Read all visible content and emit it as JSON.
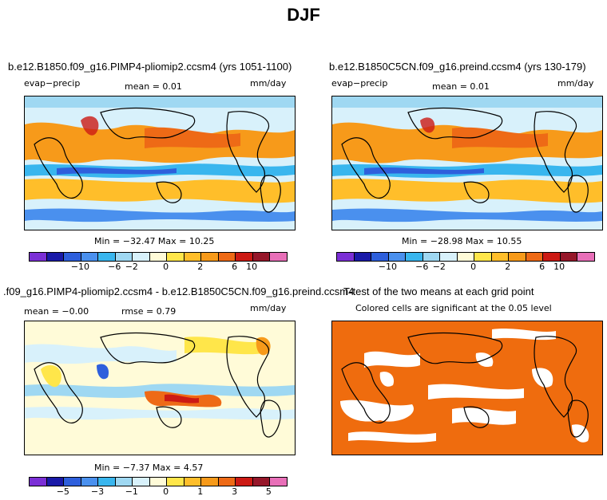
{
  "title": "DJF",
  "panels": [
    {
      "title": "b.e12.B1850.f09_g16.PIMP4-pliomip2.ccsm4 (yrs 1051-1100)",
      "variable": "evap−precip",
      "stat": "mean =    0.01",
      "units": "mm/day",
      "minmax": "Min = −32.47  Max =    10.25",
      "ticks": [
        "−10",
        "−6",
        "−2",
        "0",
        "2",
        "6",
        "10"
      ]
    },
    {
      "title": "b.e12.B1850C5CN.f09_g16.preind.ccsm4 (yrs 130-179)",
      "variable": "evap−precip",
      "stat": "mean =    0.01",
      "units": "mm/day",
      "minmax": "Min = −28.98  Max =    10.55",
      "ticks": [
        "−10",
        "−6",
        "−2",
        "0",
        "2",
        "6",
        "10"
      ]
    },
    {
      "title": ".f09_g16.PIMP4-pliomip2.ccsm4 - b.e12.B1850C5CN.f09_g16.preind.ccsm4",
      "stat": "mean =   −0.00",
      "stat2": "rmse =    0.79",
      "units": "mm/day",
      "minmax": "Min =  −7.37  Max =    4.57",
      "ticks": [
        "−5",
        "−3",
        "−1",
        "0",
        "1",
        "3",
        "5"
      ]
    },
    {
      "title": "T-test of the two means at each grid point",
      "subtitle": "Colored cells are significant at the 0.05 level"
    }
  ],
  "colors": {
    "abs_scale": [
      "#7b2fd6",
      "#1a1aa8",
      "#2e5fdc",
      "#4a90ee",
      "#39b6ee",
      "#9fd8f2",
      "#d8f1fb",
      "#fffbd8",
      "#ffe64a",
      "#ffbe2a",
      "#f79a1a",
      "#ee6a16",
      "#cc1a14",
      "#96172a",
      "#e86fb8"
    ],
    "diff_scale": [
      "#7b2fd6",
      "#1a1aa8",
      "#2e5fdc",
      "#4a90ee",
      "#39b6ee",
      "#9fd8f2",
      "#d8f1fb",
      "#fffbd8",
      "#ffe64a",
      "#ffbe2a",
      "#f79a1a",
      "#ee6a16",
      "#cc1a14",
      "#96172a",
      "#e86fb8"
    ],
    "significance": "#ef6c0e"
  }
}
